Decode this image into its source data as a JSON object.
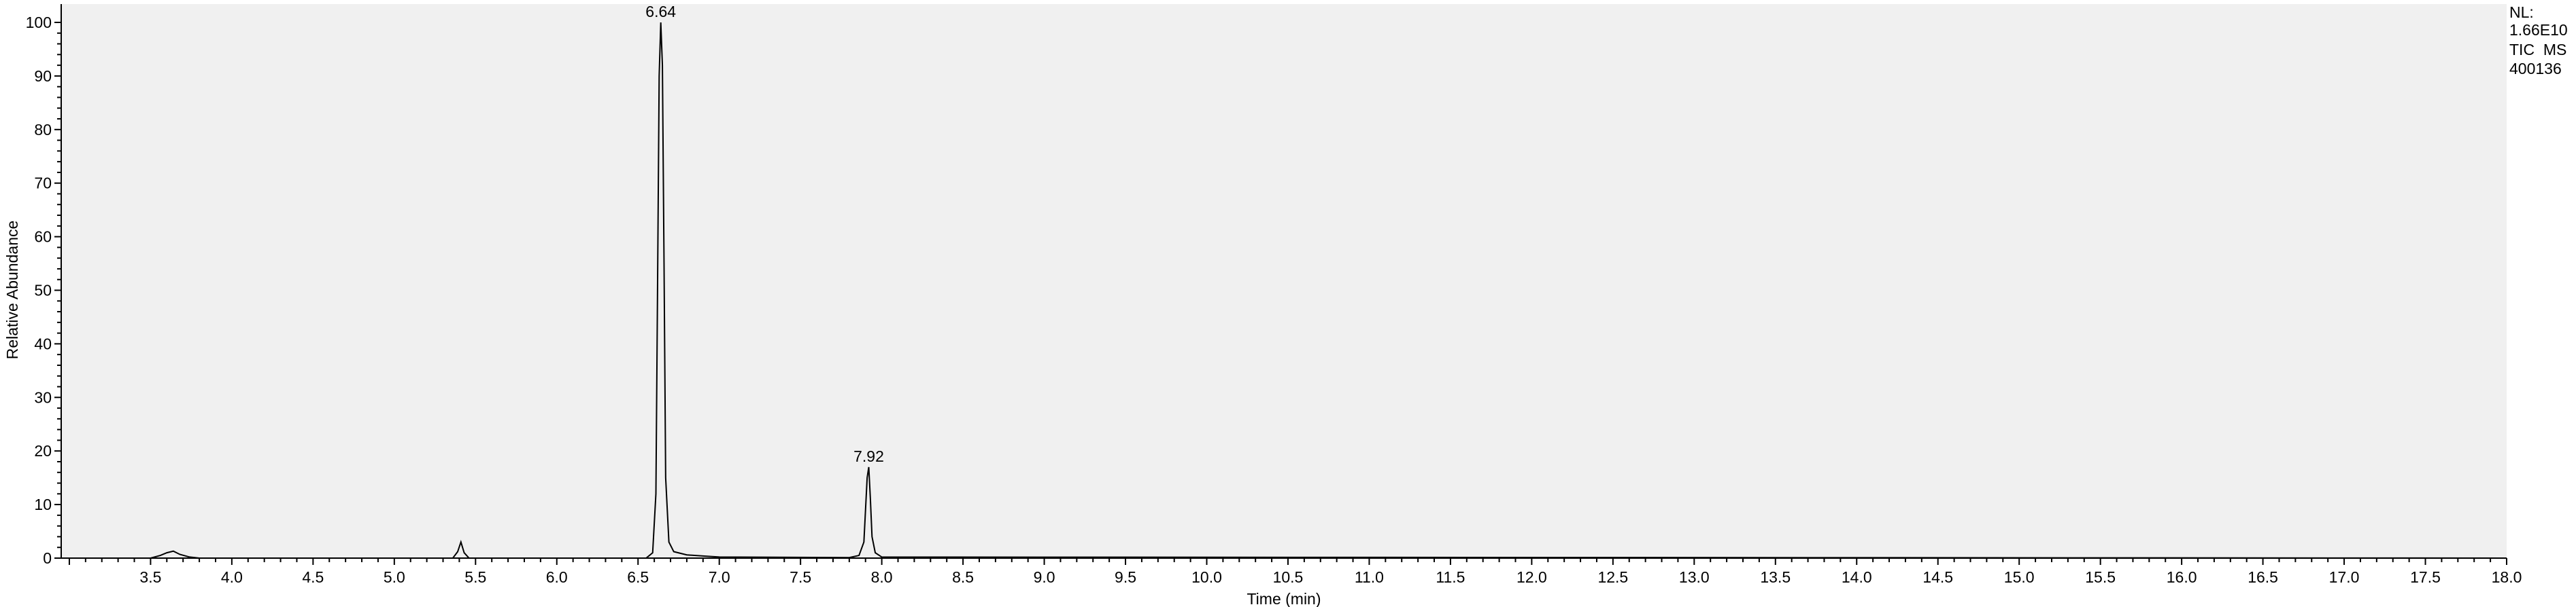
{
  "info": {
    "nl_label": "NL:",
    "nl_value": "1.66E10",
    "trace": "TIC  MS",
    "sample": "400136"
  },
  "chart_data": {
    "type": "line",
    "title": "",
    "xlabel": "Time (min)",
    "ylabel": "Relative Abundance",
    "xlim": [
      2.95,
      18.0
    ],
    "ylim": [
      0,
      100
    ],
    "grid": false,
    "background_color": "#f0f0f0",
    "line_color": "#000000",
    "x_ticks": [
      "3.5",
      "4.0",
      "4.5",
      "5.0",
      "5.5",
      "6.0",
      "6.5",
      "7.0",
      "7.5",
      "8.0",
      "8.5",
      "9.0",
      "9.5",
      "10.0",
      "10.5",
      "11.0",
      "11.5",
      "12.0",
      "12.5",
      "13.0",
      "13.5",
      "14.0",
      "14.5",
      "15.0",
      "15.5",
      "16.0",
      "16.5",
      "17.0",
      "17.5",
      "18.0"
    ],
    "y_ticks": [
      "0",
      "10",
      "20",
      "30",
      "40",
      "50",
      "60",
      "70",
      "80",
      "90",
      "100"
    ],
    "series": [
      {
        "x": [
          2.95,
          3.5,
          3.56,
          3.6,
          3.64,
          3.68,
          3.74,
          3.8,
          5.36,
          5.39,
          5.41,
          5.43,
          5.46,
          6.55,
          6.59,
          6.61,
          6.62,
          6.63,
          6.64,
          6.65,
          6.66,
          6.67,
          6.69,
          6.72,
          6.8,
          6.9,
          7.0,
          7.8,
          7.86,
          7.89,
          7.9,
          7.91,
          7.92,
          7.93,
          7.94,
          7.96,
          8.0,
          18.0
        ],
        "y": [
          0,
          0,
          0.5,
          1.0,
          1.3,
          0.7,
          0.2,
          0,
          0,
          1.2,
          3.0,
          1.0,
          0,
          0,
          1.0,
          12,
          50,
          90,
          100,
          92,
          55,
          15,
          3,
          1.2,
          0.6,
          0.4,
          0.2,
          0.1,
          0.5,
          3,
          9,
          15,
          17,
          11,
          4,
          1,
          0.2,
          0
        ]
      }
    ],
    "annotations": [
      {
        "x": 6.64,
        "y": 100,
        "text": "6.64"
      },
      {
        "x": 7.92,
        "y": 17,
        "text": "7.92"
      }
    ]
  }
}
